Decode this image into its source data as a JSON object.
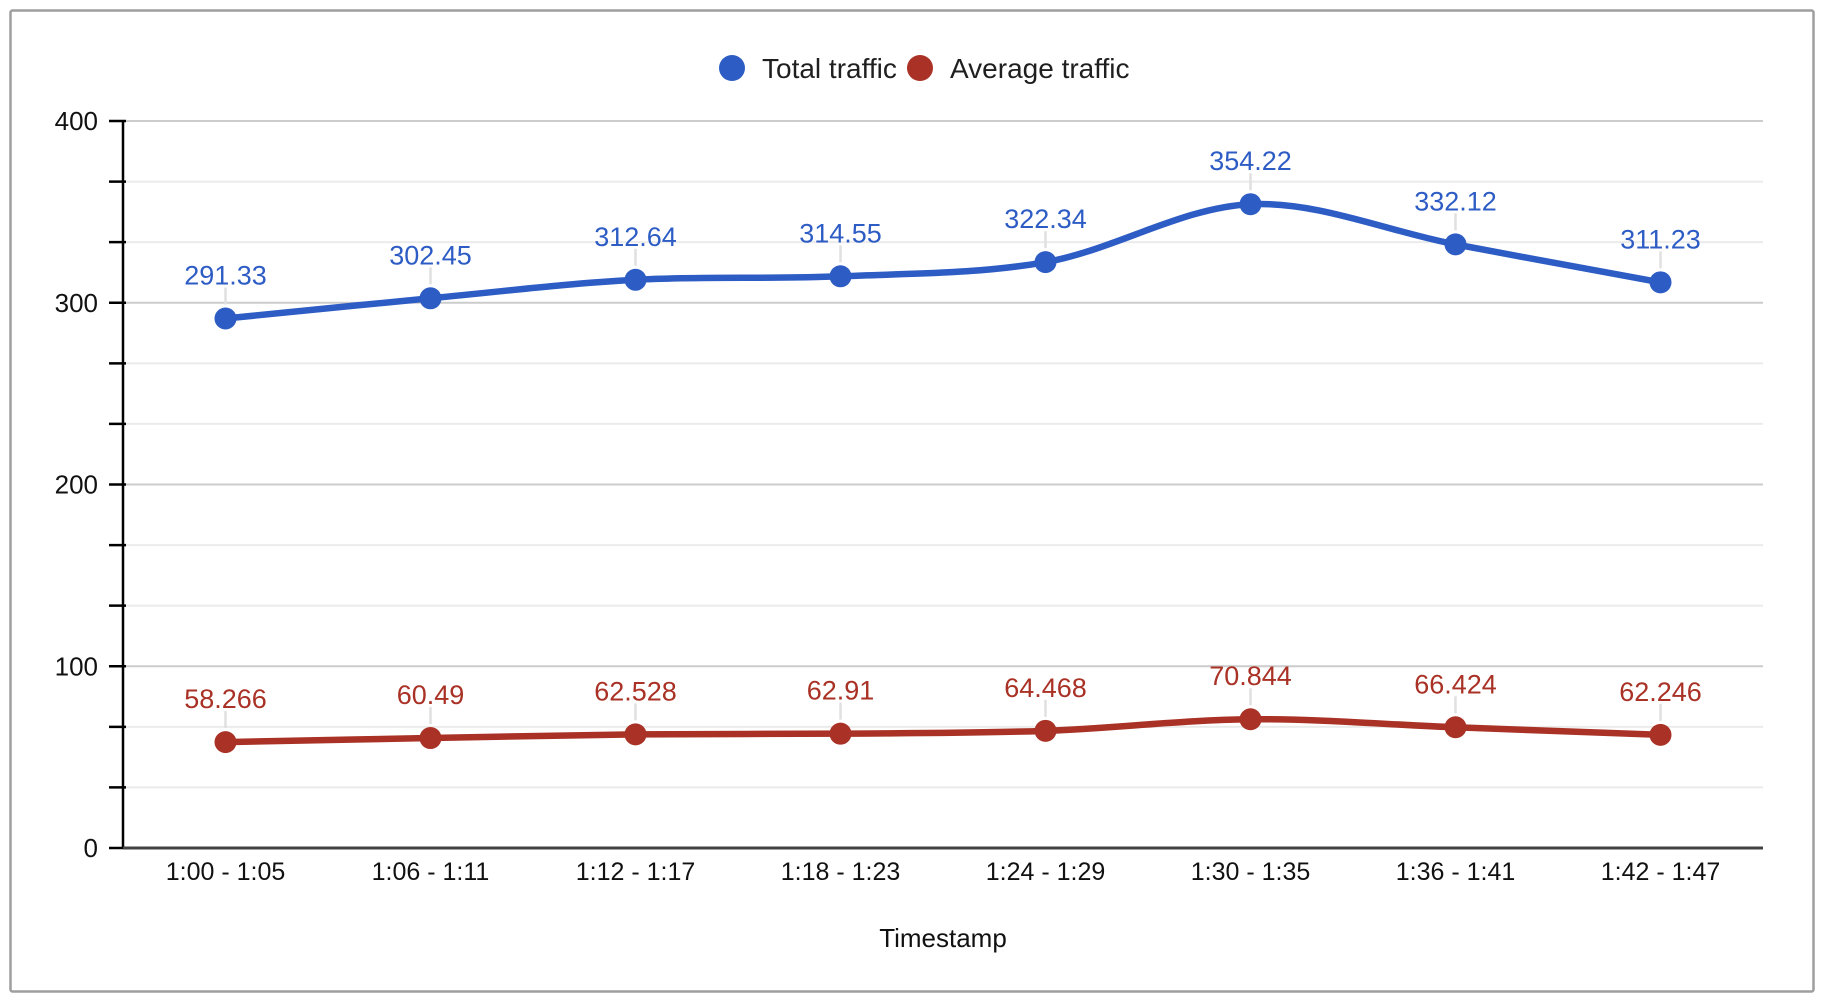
{
  "frame": {
    "border_color": "#9e9e9e",
    "background": "#ffffff"
  },
  "chart_data": {
    "type": "line",
    "title": "",
    "xlabel": "Timestamp",
    "ylabel": "",
    "categories": [
      "1:00 - 1:05",
      "1:06 - 1:11",
      "1:12 - 1:17",
      "1:18 - 1:23",
      "1:24 - 1:29",
      "1:30 - 1:35",
      "1:36 - 1:41",
      "1:42 - 1:47"
    ],
    "series": [
      {
        "name": "Total traffic",
        "color": "#2D5CC4",
        "values": [
          291.33,
          302.45,
          312.64,
          314.55,
          322.34,
          354.22,
          332.12,
          311.23
        ],
        "point_labels": [
          "291.33",
          "302.45",
          "312.64",
          "314.55",
          "322.34",
          "354.22",
          "332.12",
          "311.23"
        ]
      },
      {
        "name": "Average traffic",
        "color": "#A93125",
        "values": [
          58.266,
          60.49,
          62.528,
          62.91,
          64.468,
          70.844,
          66.424,
          62.246
        ],
        "point_labels": [
          "58.266",
          "60.49",
          "62.528",
          "62.91",
          "64.468",
          "70.844",
          "66.424",
          "62.246"
        ]
      }
    ],
    "y_axis": {
      "min": 0,
      "max": 400,
      "tick_labels": [
        "0",
        "100",
        "200",
        "300",
        "400"
      ],
      "minor_ticks_per_major": 3
    },
    "legend_position": "top",
    "grid": true,
    "smooth_lines": true,
    "point_labels_visible": true,
    "colors": {
      "major_gridline": "#cccccc",
      "minor_gridline": "#ebebeb",
      "baseline": "#424242",
      "axis": "#000000",
      "leader_line": "#e0e0e0"
    }
  }
}
